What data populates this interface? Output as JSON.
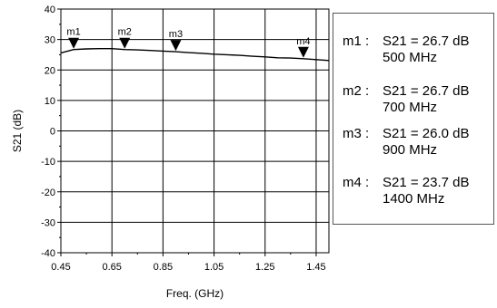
{
  "chart_data": {
    "type": "line",
    "xlabel": "Freq. (GHz)",
    "ylabel": "S21 (dB)",
    "xlim": [
      0.45,
      1.5
    ],
    "ylim": [
      -40,
      40
    ],
    "xticks": [
      "0.45",
      "0.65",
      "0.85",
      "1.05",
      "1.25",
      "1.45"
    ],
    "yticks": [
      "-40",
      "-30",
      "-20",
      "-10",
      "0",
      "10",
      "20",
      "30",
      "40"
    ],
    "grid": true,
    "series": [
      {
        "x": [
          0.45,
          0.5,
          0.55,
          0.6,
          0.65,
          0.7,
          0.75,
          0.8,
          0.85,
          0.9,
          0.95,
          1.0,
          1.05,
          1.1,
          1.15,
          1.2,
          1.25,
          1.3,
          1.35,
          1.4,
          1.45,
          1.5
        ],
        "y": [
          25.6,
          26.7,
          26.9,
          27.0,
          27.0,
          26.7,
          26.6,
          26.4,
          26.2,
          26.0,
          25.7,
          25.5,
          25.2,
          25.0,
          24.8,
          24.5,
          24.3,
          24.0,
          23.9,
          23.7,
          23.4,
          23.1
        ],
        "color": "#000000"
      }
    ],
    "markers": [
      {
        "name": "m1",
        "x": 0.5,
        "y": 26.7
      },
      {
        "name": "m2",
        "x": 0.7,
        "y": 26.7
      },
      {
        "name": "m3",
        "x": 0.9,
        "y": 26.0
      },
      {
        "name": "m4",
        "x": 1.4,
        "y": 23.7
      }
    ]
  },
  "legend": [
    {
      "name": "m1 :",
      "value": "S21 = 26.7 dB",
      "freq": "500 MHz"
    },
    {
      "name": "m2 :",
      "value": "S21 = 26.7 dB",
      "freq": "700 MHz"
    },
    {
      "name": "m3 :",
      "value": "S21 = 26.0 dB",
      "freq": "900 MHz"
    },
    {
      "name": "m4 :",
      "value": "S21 = 23.7 dB",
      "freq": "1400 MHz"
    }
  ]
}
